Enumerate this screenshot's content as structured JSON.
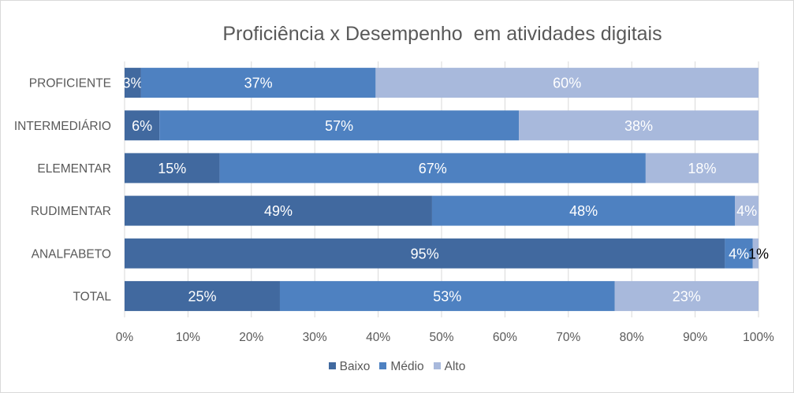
{
  "chart_data": {
    "type": "bar",
    "orientation": "horizontal",
    "stacked": "percent",
    "title": "Proficiência x Desempenho  em atividades digitais",
    "categories": [
      "PROFICIENTE",
      "INTERMEDIÁRIO",
      "ELEMENTAR",
      "RUDIMENTAR",
      "ANALFABETO",
      "TOTAL"
    ],
    "series": [
      {
        "name": "Baixo",
        "color": "#41699f",
        "values": [
          2.6,
          5.5,
          15,
          48.5,
          94.7,
          24.5
        ],
        "labels": [
          "3%",
          "6%",
          "15%",
          "49%",
          "95%",
          "25%"
        ]
      },
      {
        "name": "Médio",
        "color": "#4e81c1",
        "values": [
          37,
          56.7,
          67.2,
          47.8,
          4.4,
          52.8
        ],
        "labels": [
          "37%",
          "57%",
          "67%",
          "48%",
          "4%",
          "53%"
        ]
      },
      {
        "name": "Alto",
        "color": "#a8b9dc",
        "values": [
          60.4,
          37.8,
          17.8,
          3.7,
          0.9,
          22.7
        ],
        "labels": [
          "60%",
          "38%",
          "18%",
          "4%",
          "1%",
          "23%"
        ]
      }
    ],
    "x_ticks": [
      "0%",
      "10%",
      "20%",
      "30%",
      "40%",
      "50%",
      "60%",
      "70%",
      "80%",
      "90%",
      "100%"
    ],
    "xlim": [
      0,
      100
    ],
    "grid": true,
    "legend_position": "bottom"
  }
}
